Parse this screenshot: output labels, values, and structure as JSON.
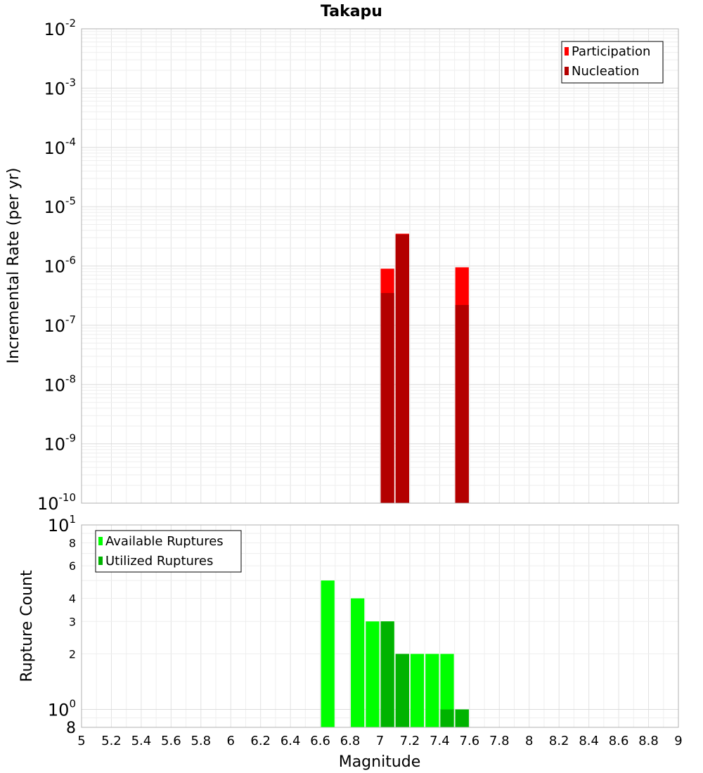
{
  "chart_data": [
    {
      "type": "bar",
      "title": "Takapu",
      "xlabel": "",
      "ylabel": "Incremental Rate (per yr)",
      "yscale": "log",
      "ylim": [
        1e-10,
        0.01
      ],
      "xlim": [
        5,
        9
      ],
      "bin_width": 0.1,
      "y_ticks": [
        {
          "base": "10",
          "exp": "-2"
        },
        {
          "base": "10",
          "exp": "-3"
        },
        {
          "base": "10",
          "exp": "-4"
        },
        {
          "base": "10",
          "exp": "-5"
        },
        {
          "base": "10",
          "exp": "-6"
        },
        {
          "base": "10",
          "exp": "-7"
        },
        {
          "base": "10",
          "exp": "-8"
        },
        {
          "base": "10",
          "exp": "-9"
        },
        {
          "base": "10",
          "exp": "-10"
        }
      ],
      "legend": {
        "position": "top-right",
        "entries": [
          "Participation",
          "Nucleation"
        ]
      },
      "grid": true,
      "series": [
        {
          "name": "Participation",
          "color": "#ff0000",
          "points": [
            {
              "x": 7.05,
              "y": 9e-07
            },
            {
              "x": 7.15,
              "y": 3.5e-06
            },
            {
              "x": 7.55,
              "y": 9.5e-07
            }
          ]
        },
        {
          "name": "Nucleation",
          "color": "#b30000",
          "points": [
            {
              "x": 7.05,
              "y": 3.5e-07
            },
            {
              "x": 7.15,
              "y": 3.4e-06
            },
            {
              "x": 7.55,
              "y": 2.2e-07
            }
          ]
        }
      ]
    },
    {
      "type": "bar",
      "title": "",
      "xlabel": "Magnitude",
      "ylabel": "Rupture Count",
      "yscale": "log",
      "ylim": [
        0.8,
        10
      ],
      "xlim": [
        5,
        9
      ],
      "bin_width": 0.1,
      "y_ticks": [
        {
          "value": 10,
          "base": "10",
          "exp": "1"
        },
        {
          "value": 8,
          "label": "8"
        },
        {
          "value": 6,
          "label": "6"
        },
        {
          "value": 4,
          "label": "4"
        },
        {
          "value": 3,
          "label": "3"
        },
        {
          "value": 2,
          "label": "2"
        },
        {
          "value": 1,
          "base": "10",
          "exp": "0"
        },
        {
          "value": 0.8,
          "label": "8"
        }
      ],
      "x_ticks": [
        "5",
        "5.2",
        "5.4",
        "5.6",
        "5.8",
        "6",
        "6.2",
        "6.4",
        "6.6",
        "6.8",
        "7",
        "7.2",
        "7.4",
        "7.6",
        "7.8",
        "8",
        "8.2",
        "8.4",
        "8.6",
        "8.8",
        "9"
      ],
      "legend": {
        "position": "top-left",
        "entries": [
          "Available Ruptures",
          "Utilized Ruptures"
        ]
      },
      "grid": true,
      "series": [
        {
          "name": "Available Ruptures",
          "color": "#00ff00",
          "points": [
            {
              "x": 6.65,
              "y": 5
            },
            {
              "x": 6.85,
              "y": 4
            },
            {
              "x": 6.95,
              "y": 3
            },
            {
              "x": 7.05,
              "y": 3
            },
            {
              "x": 7.15,
              "y": 2
            },
            {
              "x": 7.25,
              "y": 2
            },
            {
              "x": 7.35,
              "y": 2
            },
            {
              "x": 7.45,
              "y": 2
            },
            {
              "x": 7.55,
              "y": 1
            }
          ]
        },
        {
          "name": "Utilized Ruptures",
          "color": "#00b300",
          "points": [
            {
              "x": 7.05,
              "y": 3
            },
            {
              "x": 7.15,
              "y": 2
            },
            {
              "x": 7.45,
              "y": 1
            },
            {
              "x": 7.55,
              "y": 1
            }
          ]
        }
      ]
    }
  ]
}
